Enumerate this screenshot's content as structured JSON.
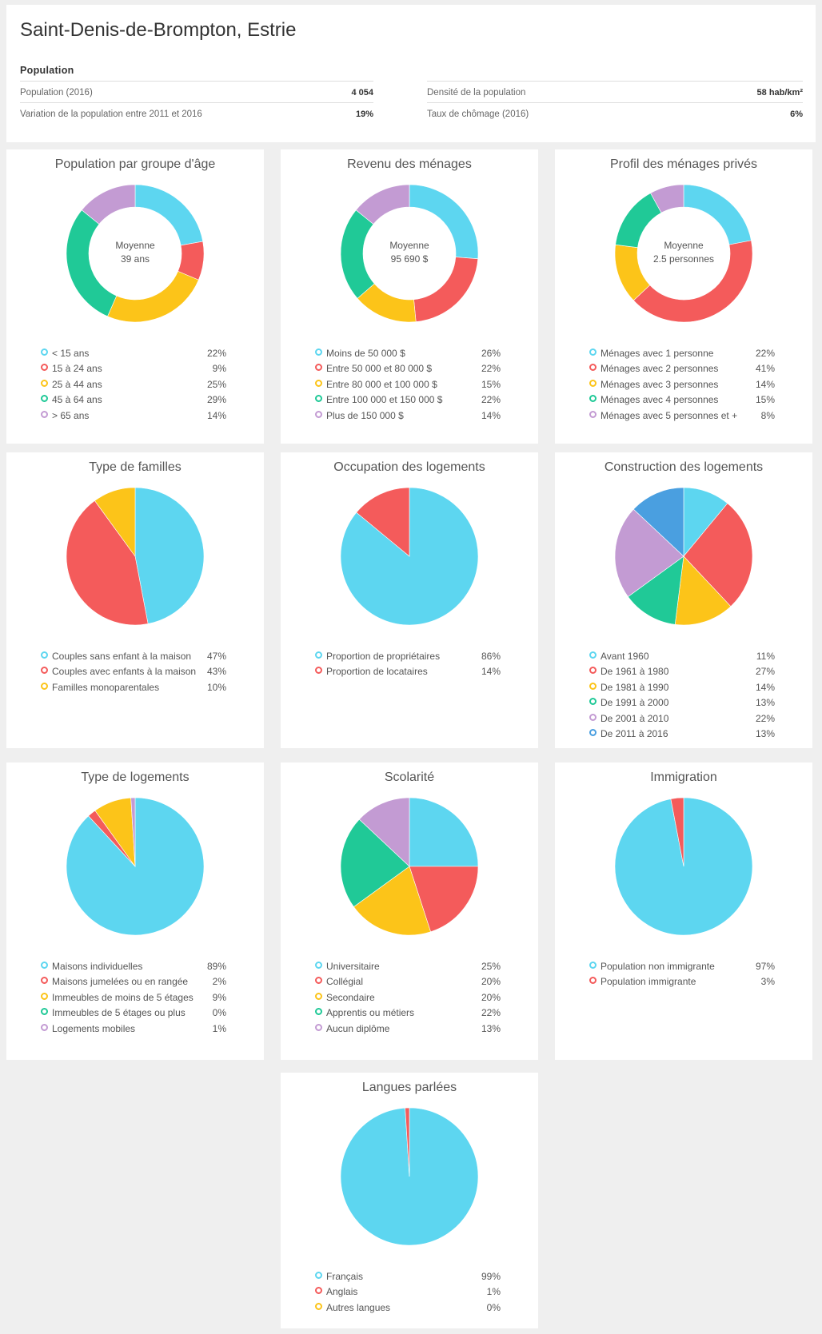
{
  "header": {
    "title": "Saint-Denis-de-Brompton, Estrie",
    "section": "Population",
    "stats": [
      {
        "label": "Population (2016)",
        "value": "4 054"
      },
      {
        "label": "Variation de la population entre 2011 et 2016",
        "value": "19%"
      },
      {
        "label": "Densité de la population",
        "value": "58 hab/km²"
      },
      {
        "label": "Taux de chômage (2016)",
        "value": "6%"
      }
    ]
  },
  "colors": {
    "cyan": "#5dd6f0",
    "red": "#f45b5b",
    "yellow": "#fcc419",
    "green": "#20c997",
    "purple": "#c39bd3",
    "blue": "#4a9fe0"
  },
  "chart_data": [
    {
      "type": "donut",
      "title": "Population par groupe d'âge",
      "center": [
        "Moyenne",
        "39 ans"
      ],
      "categories": [
        "< 15 ans",
        "15 à 24 ans",
        "25 à 44 ans",
        "45 à 64 ans",
        "> 65 ans"
      ],
      "values": [
        22,
        9,
        25,
        29,
        14
      ],
      "labels": [
        "22%",
        "9%",
        "25%",
        "29%",
        "14%"
      ],
      "colors": [
        "cyan",
        "red",
        "yellow",
        "green",
        "purple"
      ]
    },
    {
      "type": "donut",
      "title": "Revenu des ménages",
      "center": [
        "Moyenne",
        "95 690 $"
      ],
      "categories": [
        "Moins de 50 000 $",
        "Entre 50 000 et 80 000 $",
        "Entre 80 000 et 100 000 $",
        "Entre 100 000 et 150 000 $",
        "Plus de 150 000 $"
      ],
      "values": [
        26,
        22,
        15,
        22,
        14
      ],
      "labels": [
        "26%",
        "22%",
        "15%",
        "22%",
        "14%"
      ],
      "colors": [
        "cyan",
        "red",
        "yellow",
        "green",
        "purple"
      ]
    },
    {
      "type": "donut",
      "title": "Profil des ménages privés",
      "center": [
        "Moyenne",
        "2.5 personnes"
      ],
      "categories": [
        "Ménages avec 1 personne",
        "Ménages avec 2 personnes",
        "Ménages avec 3 personnes",
        "Ménages avec 4 personnes",
        "Ménages avec 5 personnes et +"
      ],
      "values": [
        22,
        41,
        14,
        15,
        8
      ],
      "labels": [
        "22%",
        "41%",
        "14%",
        "15%",
        "8%"
      ],
      "colors": [
        "cyan",
        "red",
        "yellow",
        "green",
        "purple"
      ]
    },
    {
      "type": "pie",
      "title": "Type de familles",
      "categories": [
        "Couples sans enfant à la maison",
        "Couples avec enfants à la maison",
        "Familles monoparentales"
      ],
      "values": [
        47,
        43,
        10
      ],
      "labels": [
        "47%",
        "43%",
        "10%"
      ],
      "colors": [
        "cyan",
        "red",
        "yellow"
      ]
    },
    {
      "type": "pie",
      "title": "Occupation des logements",
      "categories": [
        "Proportion de propriétaires",
        "Proportion de locataires"
      ],
      "values": [
        86,
        14
      ],
      "labels": [
        "86%",
        "14%"
      ],
      "colors": [
        "cyan",
        "red"
      ]
    },
    {
      "type": "pie",
      "title": "Construction des logements",
      "categories": [
        "Avant 1960",
        "De 1961 à 1980",
        "De 1981 à 1990",
        "De 1991 à 2000",
        "De 2001 à 2010",
        "De 2011 à 2016"
      ],
      "values": [
        11,
        27,
        14,
        13,
        22,
        13
      ],
      "labels": [
        "11%",
        "27%",
        "14%",
        "13%",
        "22%",
        "13%"
      ],
      "colors": [
        "cyan",
        "red",
        "yellow",
        "green",
        "purple",
        "blue"
      ]
    },
    {
      "type": "pie",
      "title": "Type de logements",
      "categories": [
        "Maisons individuelles",
        "Maisons jumelées ou en rangée",
        "Immeubles de moins de 5 étages",
        "Immeubles de 5 étages ou plus",
        "Logements mobiles"
      ],
      "values": [
        89,
        2,
        9,
        0,
        1
      ],
      "labels": [
        "89%",
        "2%",
        "9%",
        "0%",
        "1%"
      ],
      "colors": [
        "cyan",
        "red",
        "yellow",
        "green",
        "purple"
      ]
    },
    {
      "type": "pie",
      "title": "Scolarité",
      "categories": [
        "Universitaire",
        "Collégial",
        "Secondaire",
        "Apprentis ou métiers",
        "Aucun diplôme"
      ],
      "values": [
        25,
        20,
        20,
        22,
        13
      ],
      "labels": [
        "25%",
        "20%",
        "20%",
        "22%",
        "13%"
      ],
      "colors": [
        "cyan",
        "red",
        "yellow",
        "green",
        "purple"
      ]
    },
    {
      "type": "pie",
      "title": "Immigration",
      "categories": [
        "Population non immigrante",
        "Population immigrante"
      ],
      "values": [
        97,
        3
      ],
      "labels": [
        "97%",
        "3%"
      ],
      "colors": [
        "cyan",
        "red"
      ]
    },
    {
      "type": "pie",
      "title": "Langues parlées",
      "categories": [
        "Français",
        "Anglais",
        "Autres langues"
      ],
      "values": [
        99,
        1,
        0
      ],
      "labels": [
        "99%",
        "1%",
        "0%"
      ],
      "colors": [
        "cyan",
        "red",
        "yellow"
      ]
    }
  ]
}
